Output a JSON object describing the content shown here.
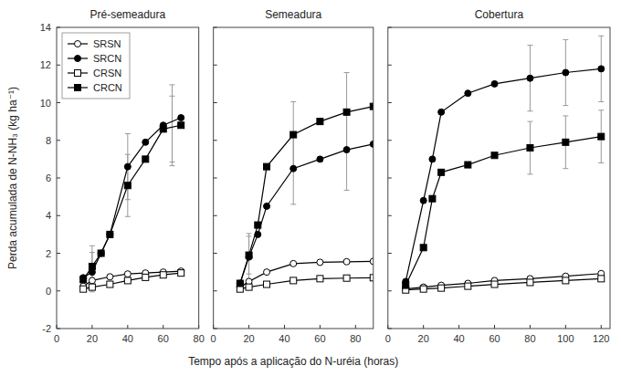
{
  "chart_data": [
    {
      "type": "line",
      "title": "Pré-semeadura",
      "ylabel": "Perda acumulada de N-NH₃ (kg ha⁻¹)",
      "xlim": [
        0,
        80
      ],
      "xticks": [
        0,
        20,
        40,
        60,
        80
      ],
      "ylim": [
        -2,
        14
      ],
      "yticks": [
        -2,
        0,
        2,
        4,
        6,
        8,
        10,
        12,
        14
      ],
      "grid": false,
      "legend": "upper left",
      "series": [
        {
          "name": "SRSN",
          "color": "black",
          "marker": "open-circle",
          "line_style": "solid",
          "x": [
            15,
            20,
            30,
            40,
            50,
            60,
            70
          ],
          "values": [
            0.25,
            0.55,
            0.75,
            0.9,
            0.95,
            1.0,
            1.05
          ]
        },
        {
          "name": "SRCN",
          "color": "black",
          "marker": "circle",
          "line_style": "solid",
          "x": [
            15,
            20,
            25,
            30,
            40,
            50,
            60,
            70
          ],
          "values": [
            0.7,
            1.0,
            2.0,
            3.0,
            6.6,
            7.9,
            8.8,
            9.2
          ],
          "error_x": [
            20,
            40,
            65
          ],
          "error_y": [
            1.0,
            6.6,
            8.8
          ],
          "error": [
            1.05,
            1.75,
            2.15
          ]
        },
        {
          "name": "CRSN",
          "color": "black",
          "marker": "open-square",
          "line_style": "solid",
          "x": [
            15,
            20,
            30,
            40,
            50,
            60,
            70
          ],
          "values": [
            0.1,
            0.2,
            0.35,
            0.55,
            0.72,
            0.85,
            0.95
          ]
        },
        {
          "name": "CRCN",
          "color": "black",
          "marker": "square",
          "line_style": "solid",
          "x": [
            15,
            20,
            25,
            30,
            40,
            50,
            60,
            70
          ],
          "values": [
            0.6,
            1.3,
            2.0,
            3.0,
            5.6,
            7.0,
            8.6,
            8.8
          ],
          "error_x": [
            20,
            40,
            65
          ],
          "error_y": [
            1.3,
            5.6,
            8.6
          ],
          "error": [
            1.1,
            1.65,
            1.75
          ]
        }
      ]
    },
    {
      "type": "line",
      "title": "Semeadura",
      "xlabel": "Tempo após a aplicação do N-uréia (horas)",
      "xlim": [
        0,
        90
      ],
      "xticks": [
        0,
        20,
        40,
        60,
        80
      ],
      "ylim": [
        -2,
        14
      ],
      "yticks": [
        -2,
        0,
        2,
        4,
        6,
        8,
        10,
        12,
        14
      ],
      "grid": false,
      "tick_labels": "x",
      "series": [
        {
          "color": "black",
          "marker": "open-circle",
          "line_style": "solid",
          "x": [
            15,
            20,
            30,
            45,
            60,
            75,
            90
          ],
          "values": [
            0.2,
            0.5,
            1.0,
            1.45,
            1.52,
            1.55,
            1.57
          ]
        },
        {
          "color": "black",
          "marker": "circle",
          "line_style": "solid",
          "x": [
            15,
            20,
            25,
            30,
            45,
            60,
            75,
            90
          ],
          "values": [
            0.4,
            1.8,
            3.0,
            4.5,
            6.5,
            7.0,
            7.5,
            7.8
          ],
          "error_x": [
            20,
            45,
            75
          ],
          "error_y": [
            1.8,
            6.5,
            7.5
          ],
          "error": [
            1.25,
            1.9,
            2.15
          ]
        },
        {
          "color": "black",
          "marker": "open-square",
          "line_style": "solid",
          "x": [
            15,
            20,
            30,
            45,
            60,
            75,
            90
          ],
          "values": [
            0.1,
            0.2,
            0.35,
            0.55,
            0.65,
            0.68,
            0.7
          ]
        },
        {
          "color": "black",
          "marker": "square",
          "line_style": "solid",
          "x": [
            15,
            20,
            25,
            30,
            45,
            60,
            75,
            90
          ],
          "values": [
            0.4,
            1.9,
            3.5,
            6.6,
            8.3,
            9.0,
            9.5,
            9.8
          ],
          "error_x": [
            20,
            45,
            75
          ],
          "error_y": [
            1.9,
            8.3,
            9.5
          ],
          "error": [
            1.0,
            1.75,
            2.1
          ]
        }
      ]
    },
    {
      "type": "line",
      "title": "Cobertura",
      "xlim": [
        0,
        125
      ],
      "xticks": [
        0,
        20,
        40,
        60,
        80,
        100,
        120
      ],
      "ylim": [
        -2,
        14
      ],
      "yticks": [
        -2,
        0,
        2,
        4,
        6,
        8,
        10,
        12,
        14
      ],
      "grid": false,
      "tick_labels": "x",
      "series": [
        {
          "color": "black",
          "marker": "open-circle",
          "line_style": "solid",
          "x": [
            10,
            20,
            30,
            45,
            60,
            80,
            100,
            120
          ],
          "values": [
            0.1,
            0.2,
            0.3,
            0.4,
            0.55,
            0.65,
            0.78,
            0.92
          ]
        },
        {
          "color": "black",
          "marker": "circle",
          "line_style": "solid",
          "x": [
            10,
            20,
            25,
            30,
            45,
            60,
            80,
            100,
            120
          ],
          "values": [
            0.5,
            4.8,
            7.0,
            9.5,
            10.5,
            11.0,
            11.3,
            11.6,
            11.8
          ],
          "error_x": [
            80,
            100,
            120
          ],
          "error_y": [
            11.3,
            11.6,
            11.8
          ],
          "error": [
            1.75,
            1.75,
            1.75
          ]
        },
        {
          "color": "black",
          "marker": "open-square",
          "line_style": "solid",
          "x": [
            10,
            20,
            30,
            45,
            60,
            80,
            100,
            120
          ],
          "values": [
            0.05,
            0.1,
            0.15,
            0.25,
            0.35,
            0.45,
            0.55,
            0.65
          ]
        },
        {
          "color": "black",
          "marker": "square",
          "line_style": "solid",
          "x": [
            10,
            20,
            25,
            30,
            45,
            60,
            80,
            100,
            120
          ],
          "values": [
            0.3,
            2.3,
            4.9,
            6.3,
            6.7,
            7.2,
            7.6,
            7.9,
            8.2
          ],
          "error_x": [
            80,
            100,
            120
          ],
          "error_y": [
            7.6,
            7.9,
            8.2
          ],
          "error": [
            1.4,
            1.4,
            1.4
          ]
        }
      ]
    }
  ]
}
